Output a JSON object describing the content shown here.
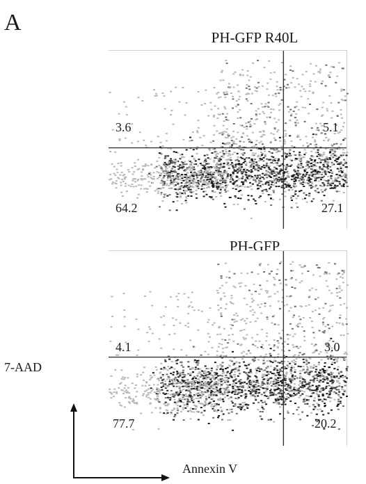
{
  "figure": {
    "panel_label": "A",
    "y_axis_label": "7-AAD",
    "x_axis_label": "Annexin V"
  },
  "chart_data": [
    {
      "type": "scatter",
      "title": "PH-GFP R40L",
      "xlabel": "Annexin V",
      "ylabel": "7-AAD",
      "quadrants": {
        "upper_left": "3.6",
        "upper_right": "5.1",
        "lower_left": "64.2",
        "lower_right": "27.1"
      },
      "gate_x": 0.735,
      "gate_y": 0.545,
      "xlim": [
        0,
        1
      ],
      "ylim": [
        0,
        1
      ],
      "grid": false,
      "legend": "none"
    },
    {
      "type": "scatter",
      "title": "PH-GFP",
      "xlabel": "Annexin V",
      "ylabel": "7-AAD",
      "quadrants": {
        "upper_left": "4.1",
        "upper_right": "3.0",
        "lower_left": "77.7",
        "lower_right": "20.2"
      },
      "gate_x": 0.735,
      "gate_y": 0.545,
      "xlim": [
        0,
        1
      ],
      "ylim": [
        0,
        1
      ],
      "grid": false,
      "legend": "none"
    }
  ],
  "colors": {
    "dense": "#1a1a1a",
    "mid": "#6e6e6e",
    "light": "#b8b8b8",
    "gate": "#333333"
  }
}
